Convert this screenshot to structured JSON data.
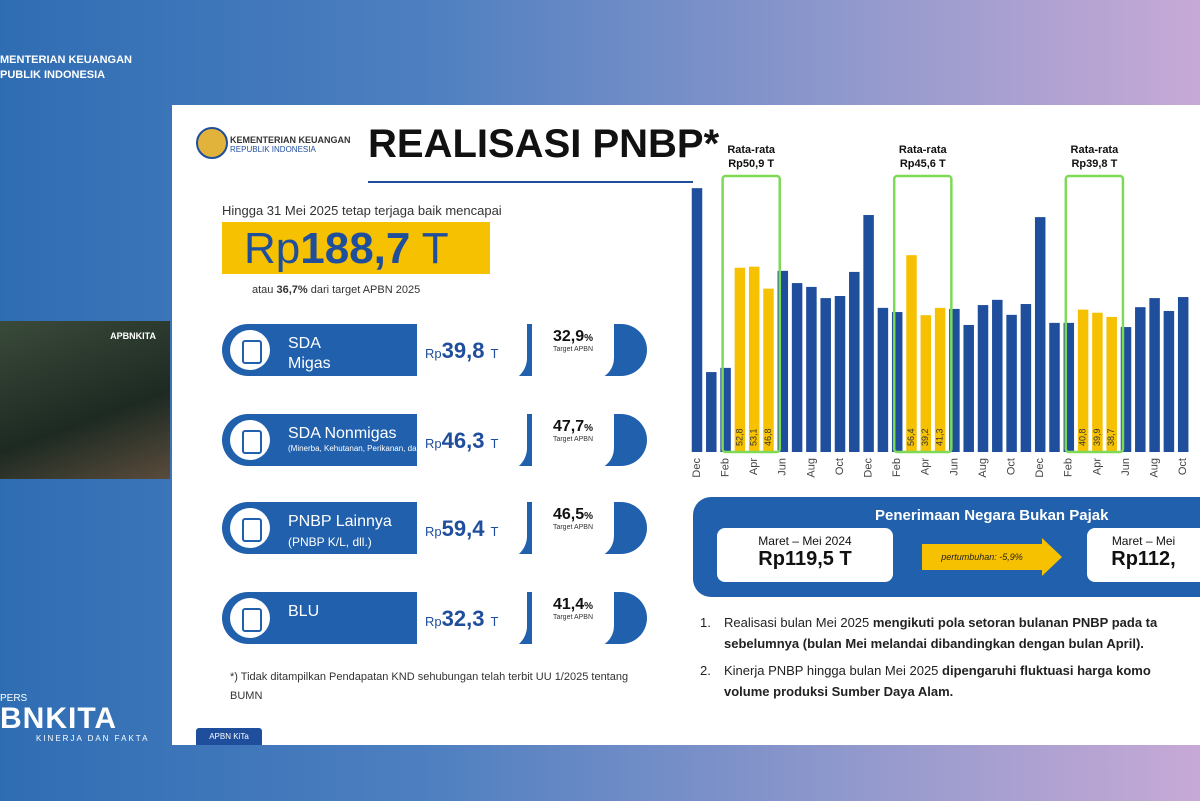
{
  "broadcast": {
    "ministry": [
      "MENTERIAN KEUANGAN",
      "PUBLIK INDONESIA"
    ],
    "video_label": "APBNKITA",
    "brand": {
      "pers": "PERS",
      "name": "BNKITA",
      "tagline": "KINERJA DAN FAKTA"
    }
  },
  "slide": {
    "logo": [
      "KEMENTERIAN KEUANGAN",
      "REPUBLIK INDONESIA"
    ],
    "title": "REALISASI PNBP*",
    "lead": "Hingga 31 Mei 2025 tetap terjaga baik mencapai",
    "headline": {
      "prefix": "Rp",
      "amount": "188,7",
      "unit": "T"
    },
    "subline": {
      "pre": "atau ",
      "pct": "36,7%",
      "post": " dari target APBN 2025"
    },
    "cards": [
      {
        "name": "SDA",
        "name2": "Migas",
        "note": "",
        "prefix": "Rp",
        "amount": "39,8",
        "unit": "T",
        "pct": "32,9",
        "pct_unit": "%",
        "target": "Target APBN"
      },
      {
        "name": "SDA Nonmigas",
        "name2": "",
        "note": "(Minerba, Kehutanan, Perikanan, dan Panas Bumi)",
        "prefix": "Rp",
        "amount": "46,3",
        "unit": "T",
        "pct": "47,7",
        "pct_unit": "%",
        "target": "Target APBN"
      },
      {
        "name": "PNBP Lainnya",
        "name2": "(PNBP K/L, dll.)",
        "note": "",
        "prefix": "Rp",
        "amount": "59,4",
        "unit": "T",
        "pct": "46,5",
        "pct_unit": "%",
        "target": "Target APBN"
      },
      {
        "name": "BLU",
        "name2": "",
        "note": "",
        "prefix": "Rp",
        "amount": "32,3",
        "unit": "T",
        "pct": "41,4",
        "pct_unit": "%",
        "target": "Target APBN"
      }
    ],
    "footnote": "*) Tidak ditampilkan Pendapatan KND sehubungan telah terbit UU 1/2025 tentang BUMN",
    "tag": "APBN KiTa",
    "comparison": {
      "title": "Penerimaan Negara Bukan Pajak",
      "left": {
        "period": "Maret – Mei 2024",
        "value": "Rp119,5 T"
      },
      "growth": "pertumbuhan: -5,9%",
      "right": {
        "period": "Maret – Mei",
        "value": "Rp112,"
      }
    },
    "notes": [
      {
        "num": "1.",
        "plain": "Realisasi bulan Mei 2025 ",
        "bold": "mengikuti pola setoran bulanan PNBP pada ta",
        "line2": "sebelumnya (bulan Mei melandai dibandingkan dengan bulan April)."
      },
      {
        "num": "2.",
        "plain": "Kinerja PNBP hingga bulan Mei 2025 ",
        "bold": "dipengaruhi fluktuasi harga komo",
        "line2": "volume produksi Sumber Daya Alam."
      }
    ]
  },
  "chart_data": {
    "type": "bar",
    "categories": [
      "Dec",
      null,
      "Feb",
      null,
      "Apr",
      null,
      "Jun",
      null,
      "Aug",
      null,
      "Oct",
      null,
      "Dec",
      null,
      "Feb",
      null,
      "Apr",
      null,
      "Jun",
      null,
      "Aug",
      null,
      "Oct",
      null,
      "Dec",
      null,
      "Feb",
      null,
      "Apr",
      null,
      "Jun",
      null,
      "Aug",
      null,
      "Oct",
      null
    ],
    "values": [
      75.6,
      22.9,
      24.1,
      52.8,
      53.1,
      46.8,
      51.9,
      48.4,
      47.3,
      44.1,
      44.7,
      51.6,
      67.9,
      41.3,
      40.1,
      56.4,
      39.2,
      41.3,
      41.0,
      36.4,
      42.1,
      43.6,
      39.3,
      42.4,
      67.3,
      37.0,
      37.0,
      40.8,
      39.9,
      38.7,
      35.8,
      41.5,
      44.1,
      40.4,
      44.4,
      38.1
    ],
    "value_labels": [
      null,
      null,
      null,
      "52,8",
      "53,1",
      "46,8",
      null,
      null,
      null,
      null,
      null,
      null,
      null,
      null,
      null,
      "56,4",
      "39,2",
      "41,3",
      null,
      null,
      null,
      null,
      null,
      null,
      null,
      null,
      null,
      "40,8",
      "39,9",
      "38,7",
      null,
      null,
      null,
      null,
      null,
      null
    ],
    "colors": [
      "#1f4e9c",
      "#1f4e9c",
      "#1f4e9c",
      "#f6c100",
      "#f6c100",
      "#f6c100",
      "#1f4e9c",
      "#1f4e9c",
      "#1f4e9c",
      "#1f4e9c",
      "#1f4e9c",
      "#1f4e9c",
      "#1f4e9c",
      "#1f4e9c",
      "#1f4e9c",
      "#f6c100",
      "#f6c100",
      "#f6c100",
      "#1f4e9c",
      "#1f4e9c",
      "#1f4e9c",
      "#1f4e9c",
      "#1f4e9c",
      "#1f4e9c",
      "#1f4e9c",
      "#1f4e9c",
      "#1f4e9c",
      "#f6c100",
      "#f6c100",
      "#f6c100",
      "#1f4e9c",
      "#1f4e9c",
      "#1f4e9c",
      "#1f4e9c",
      "#1f4e9c",
      "#1f4e9c"
    ],
    "annotations": [
      [
        "Rata-rata",
        "Rp50,9 T"
      ],
      [
        "Rata-rata",
        "Rp45,6 T"
      ],
      [
        "Rata-rata",
        "Rp39,8 T"
      ]
    ],
    "highlight_color": "#7ed957"
  }
}
